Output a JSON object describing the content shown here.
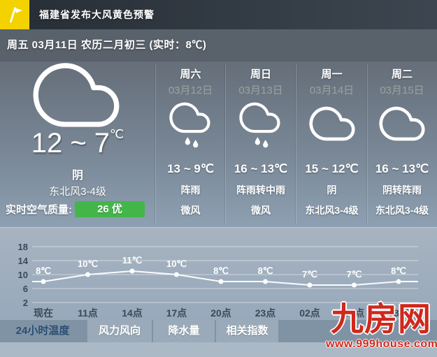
{
  "warning": {
    "text": "福建省发布大风黄色预警",
    "flag_color": "#f3d200"
  },
  "date_bar": {
    "text": "周五 03月11日 农历二月初三 (实时：8℃)"
  },
  "current": {
    "icon": "cloud-icon",
    "temp_range": "12 ~ 7",
    "temp_unit": "℃",
    "condition": "阴",
    "wind": "东北风3-4级",
    "air_quality_label": "实时空气质量:",
    "air_quality_value": "26 优",
    "air_quality_color": "#43b649"
  },
  "forecast": [
    {
      "day": "周六",
      "date": "03月12日",
      "icon": "rain-cloud-icon",
      "temp": "13 ~ 9℃",
      "condition": "阵雨",
      "wind": "微风"
    },
    {
      "day": "周日",
      "date": "03月13日",
      "icon": "rain-cloud-icon",
      "temp": "16 ~ 13℃",
      "condition": "阵雨转中雨",
      "wind": "微风"
    },
    {
      "day": "周一",
      "date": "03月14日",
      "icon": "cloud-icon",
      "temp": "15 ~ 12℃",
      "condition": "阴",
      "wind": "东北风3-4级"
    },
    {
      "day": "周二",
      "date": "03月15日",
      "icon": "cloud-icon",
      "temp": "16 ~ 13℃",
      "condition": "阴转阵雨",
      "wind": "东北风3-4级"
    }
  ],
  "chart_data": {
    "type": "line",
    "x": [
      "现在",
      "11点",
      "14点",
      "17点",
      "20点",
      "23点",
      "02点",
      "05点",
      "08点"
    ],
    "values": [
      8,
      10,
      11,
      10,
      8,
      8,
      7,
      7,
      8
    ],
    "labels": [
      "8℃",
      "10℃",
      "11℃",
      "10℃",
      "8℃",
      "8℃",
      "7℃",
      "7℃",
      "8℃"
    ],
    "yticks": [
      18,
      14,
      10,
      6,
      2
    ],
    "ylim": [
      2,
      18
    ],
    "xlabel": "",
    "ylabel": "",
    "grid": true,
    "legend": "none",
    "line_color": "#ffffff"
  },
  "tabs": [
    {
      "label": "24小时温度",
      "active": true
    },
    {
      "label": "风力风向",
      "active": false
    },
    {
      "label": "降水量",
      "active": false
    },
    {
      "label": "相关指数",
      "active": false
    }
  ],
  "watermark": {
    "title": "九房网",
    "url": "www.999house.com",
    "color": "#d0281c"
  }
}
